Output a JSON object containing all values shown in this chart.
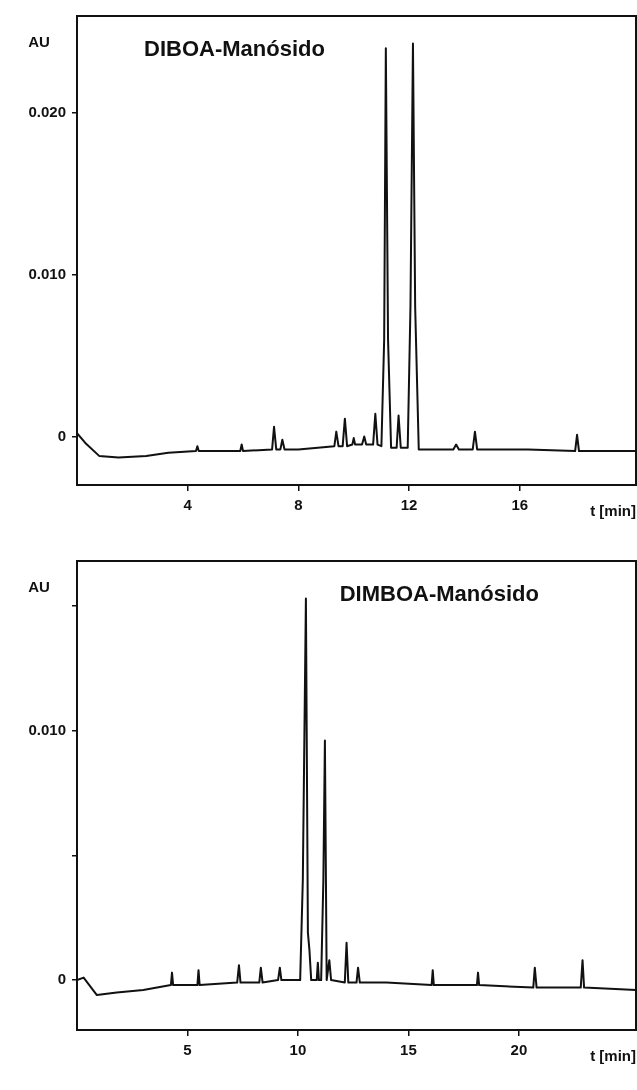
{
  "chart_data": [
    {
      "type": "line",
      "title": "DIBOA-Manósido",
      "xlabel": "t [min]",
      "ylabel": "AU",
      "color": "#111111",
      "marker": "none",
      "line_style": "solid",
      "grid": false,
      "legend": false,
      "x": [
        0,
        0.3,
        0.8,
        1.5,
        2.5,
        3.3,
        4.3,
        4.35,
        4.4,
        5.9,
        5.95,
        6.0,
        7.05,
        7.12,
        7.2,
        7.35,
        7.42,
        7.5,
        8,
        9.3,
        9.37,
        9.45,
        9.6,
        9.68,
        9.76,
        9.95,
        10.0,
        10.05,
        10.3,
        10.38,
        10.45,
        10.7,
        10.78,
        10.86,
        11.0,
        11.1,
        11.16,
        11.24,
        11.35,
        11.55,
        11.62,
        11.7,
        11.95,
        12.05,
        12.14,
        12.22,
        12.35,
        12.6,
        13.6,
        13.7,
        13.8,
        14.3,
        14.38,
        14.46,
        16.3,
        18.0,
        18.07,
        18.14,
        20.2
      ],
      "values": [
        0.0002,
        -0.0004,
        -0.0012,
        -0.0013,
        -0.0012,
        -0.001,
        -0.0009,
        -0.0006,
        -0.0009,
        -0.0009,
        -0.0005,
        -0.0009,
        -0.0008,
        0.0006,
        -0.0008,
        -0.0008,
        -0.0002,
        -0.0008,
        -0.0008,
        -0.0006,
        0.0003,
        -0.0006,
        -0.0006,
        0.0011,
        -0.0006,
        -0.0005,
        -0.0001,
        -0.0005,
        -0.0005,
        0.0,
        -0.0005,
        -0.0005,
        0.0014,
        -0.0005,
        -0.0006,
        0.006,
        0.024,
        0.006,
        -0.0007,
        -0.0007,
        0.0013,
        -0.0007,
        -0.0007,
        0.008,
        0.0243,
        0.008,
        -0.0008,
        -0.0008,
        -0.0008,
        -0.0005,
        -0.0008,
        -0.0008,
        0.0003,
        -0.0008,
        -0.0008,
        -0.0009,
        0.0001,
        -0.0009,
        -0.0009
      ],
      "xlim": [
        0,
        20.2
      ],
      "xticks": [
        4,
        8,
        12,
        16
      ],
      "ylim": [
        -0.003,
        0.026
      ],
      "yticks": [
        0,
        {
          "value": 0.01,
          "label": "0.010"
        },
        {
          "value": 0.02,
          "label": "0.020"
        }
      ]
    },
    {
      "type": "line",
      "title": "DIMBOA-Manósido",
      "xlabel": "t [min]",
      "ylabel": "AU",
      "color": "#111111",
      "marker": "none",
      "line_style": "solid",
      "grid": false,
      "legend": false,
      "x": [
        0,
        0.3,
        0.9,
        1.8,
        3,
        4.25,
        4.3,
        4.35,
        5.45,
        5.5,
        5.55,
        7.25,
        7.33,
        7.4,
        8.25,
        8.32,
        8.4,
        9.1,
        9.18,
        9.25,
        10.1,
        10.22,
        10.36,
        10.45,
        10.52,
        10.6,
        10.85,
        10.9,
        10.95,
        11.05,
        11.15,
        11.22,
        11.3,
        11.42,
        11.5,
        12.12,
        12.2,
        12.28,
        12.65,
        12.72,
        12.8,
        14,
        16.05,
        16.1,
        16.15,
        18.1,
        18.15,
        18.2,
        20.65,
        20.72,
        20.8,
        22.8,
        22.88,
        22.95,
        25.3
      ],
      "values": [
        0,
        0.0001,
        -0.0006,
        -0.0005,
        -0.0004,
        -0.0002,
        0.0003,
        -0.0002,
        -0.0002,
        0.0004,
        -0.0002,
        -0.0001,
        0.0006,
        -0.0001,
        -0.0001,
        0.0005,
        -0.0001,
        0,
        0.0005,
        0,
        0,
        0.004,
        0.0153,
        0.0019,
        0.0012,
        0,
        0,
        0.0007,
        0,
        0,
        0.004,
        0.0096,
        0,
        0.0008,
        0,
        -0.0001,
        0.0015,
        -0.0001,
        -0.0001,
        0.0005,
        -0.0001,
        -0.0001,
        -0.0002,
        0.0004,
        -0.0002,
        -0.0002,
        0.0003,
        -0.0002,
        -0.0003,
        0.0005,
        -0.0003,
        -0.0003,
        0.0008,
        -0.0003,
        -0.0004
      ],
      "xlim": [
        0,
        25.3
      ],
      "xticks": [
        5,
        10,
        15,
        20
      ],
      "ylim": [
        -0.002,
        0.0168
      ],
      "yticks": [
        0,
        {
          "value": 0.005,
          "label": null
        },
        {
          "value": 0.01,
          "label": "0.010"
        },
        {
          "value": 0.015,
          "label": null
        }
      ]
    }
  ]
}
